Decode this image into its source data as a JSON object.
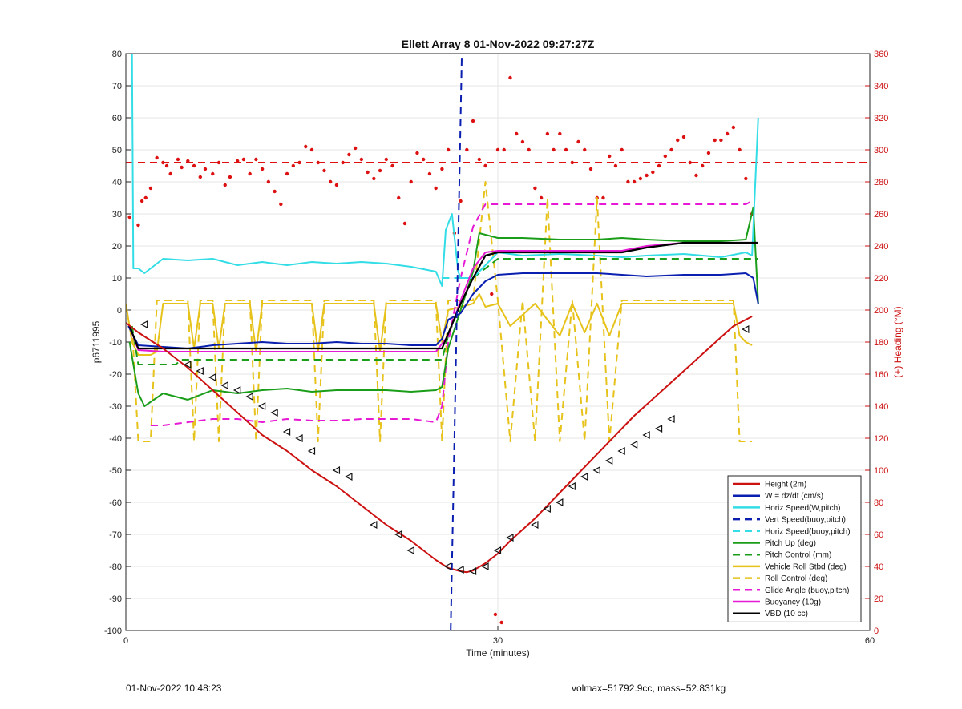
{
  "chart_data": {
    "type": "line",
    "title": "Ellett Array 8 01-Nov-2022 09:27:27Z",
    "xlabel": "Time (minutes)",
    "ylabel": "p6711995",
    "y2label": "(+) Heading (°M)",
    "xlim": [
      0,
      60
    ],
    "ylim": [
      -100,
      80
    ],
    "y2lim": [
      0,
      360
    ],
    "xticks": [
      0,
      30,
      60
    ],
    "yticks": [
      -100,
      -90,
      -80,
      -70,
      -60,
      -50,
      -40,
      -30,
      -20,
      -10,
      0,
      10,
      20,
      30,
      40,
      50,
      60,
      70,
      80
    ],
    "y2ticks": [
      0,
      20,
      40,
      60,
      80,
      100,
      120,
      140,
      160,
      180,
      200,
      220,
      240,
      260,
      280,
      300,
      320,
      340,
      360
    ],
    "grid": true,
    "legend_position": "bottom-right",
    "colors": {
      "height": "#cc1111",
      "w": "#0a1fb0",
      "horiz": "#33dde6",
      "pitch": "#1a9e1a",
      "roll": "#e6c21a",
      "glide": "#e61ad4",
      "vbd": "#000000",
      "heading": "#dd1111",
      "right_axis": "#cc1111"
    },
    "series": [
      {
        "key": "height",
        "name": "Height (2m)",
        "axis": "left",
        "style": "solid",
        "x": [
          0,
          1,
          3,
          5,
          7,
          9,
          11,
          13,
          15,
          17,
          19,
          21,
          23,
          25,
          26,
          27,
          27.5,
          28,
          29,
          30,
          31,
          33,
          35,
          37,
          39,
          41,
          43,
          45,
          47,
          49,
          50.5
        ],
        "y": [
          -4,
          -7,
          -12,
          -18,
          -25,
          -32,
          -39,
          -44,
          -50,
          -55,
          -61,
          -67,
          -72,
          -78,
          -80.5,
          -81.5,
          -81.8,
          -81.3,
          -79,
          -76,
          -72,
          -65,
          -57,
          -49,
          -41,
          -33,
          -26,
          -19,
          -12,
          -5,
          -2
        ]
      },
      {
        "key": "w",
        "name": "W = dz/dt (cm/s)",
        "axis": "left",
        "style": "solid",
        "x": [
          0.2,
          1,
          3,
          5,
          7,
          9,
          11,
          13,
          15,
          17,
          19,
          21,
          23,
          25,
          25.5,
          26,
          27,
          27.5,
          28,
          29,
          30,
          32,
          35,
          38,
          40,
          42,
          45,
          48,
          50,
          50.6,
          51
        ],
        "y": [
          -5,
          -11,
          -11.5,
          -12,
          -11,
          -10.5,
          -10,
          -10.5,
          -10.5,
          -10,
          -10.5,
          -10.5,
          -11,
          -11,
          -9,
          -3,
          -1,
          2,
          5,
          9,
          11,
          11.5,
          11.5,
          11.5,
          11,
          10.5,
          11,
          11,
          11.5,
          10,
          2
        ]
      },
      {
        "key": "horiz",
        "name": "Horiz Speed(W,pitch)",
        "axis": "left",
        "style": "solid",
        "x": [
          0.5,
          0.6,
          1,
          1.5,
          3,
          5,
          7,
          9,
          11,
          13,
          15,
          17,
          19,
          21,
          23,
          25,
          25.5,
          25.8,
          26.3,
          26.8,
          27,
          28,
          29,
          30,
          32,
          35,
          38,
          40,
          42,
          45,
          48,
          50,
          50.5,
          51
        ],
        "y": [
          80,
          13,
          13,
          11.5,
          16,
          15.5,
          16,
          14,
          15,
          14,
          15,
          14.5,
          15,
          14.5,
          13.5,
          12,
          7.5,
          25,
          30,
          12,
          10,
          10,
          14,
          18,
          17,
          17.5,
          17,
          16.5,
          17,
          17.5,
          16.5,
          18,
          17,
          60
        ]
      },
      {
        "key": "vert_buoy",
        "name": "Vert Speed(buoy,pitch)",
        "axis": "left",
        "style": "dashed",
        "x": [
          26.2,
          27.1
        ],
        "y": [
          -100,
          80
        ]
      },
      {
        "key": "horiz_buoy",
        "name": "Horiz Speed(buoy,pitch)",
        "axis": "left",
        "style": "dashed",
        "x": [
          25.5,
          27.3
        ],
        "y": [
          10,
          10
        ]
      },
      {
        "key": "pitch",
        "name": "Pitch Up (deg)",
        "axis": "left",
        "style": "solid",
        "x": [
          0.3,
          1,
          1.5,
          3,
          5,
          7,
          9,
          11,
          13,
          15,
          17,
          19,
          21,
          23,
          25,
          25.5,
          26,
          27,
          28,
          28.5,
          30,
          32,
          35,
          38,
          40,
          42,
          45,
          48,
          50,
          50.6,
          51
        ],
        "y": [
          -10,
          -26,
          -30,
          -26,
          -28,
          -25,
          -26,
          -25,
          -24.5,
          -25.5,
          -25,
          -25,
          -25,
          -25.5,
          -25,
          -24,
          -12,
          0,
          12,
          24,
          22.5,
          22.5,
          22,
          22,
          22.5,
          22,
          21.5,
          21.5,
          22,
          32,
          2
        ]
      },
      {
        "key": "pitch_ctrl",
        "name": "Pitch Control (mm)",
        "axis": "left",
        "style": "dashed",
        "x": [
          0.5,
          1,
          4,
          4.5,
          25,
          25.5,
          26,
          27,
          28,
          30,
          40,
          50,
          51
        ],
        "y": [
          -5,
          -17,
          -17,
          -15.5,
          -15.5,
          -15.5,
          -8,
          2,
          10,
          16,
          16,
          16,
          16
        ]
      },
      {
        "key": "roll",
        "name": "Vehicle Roll Stbd (deg)",
        "axis": "left",
        "style": "solid",
        "x": [
          0,
          0.5,
          1,
          2,
          2.5,
          3,
          5,
          5.5,
          6,
          7,
          7.5,
          8,
          10,
          10.5,
          11,
          15,
          15.5,
          16,
          20,
          20.5,
          21,
          25,
          25.5,
          26,
          28,
          28.5,
          29,
          30,
          31,
          33,
          35,
          36,
          37,
          38,
          39,
          40,
          45,
          49,
          49.5,
          50,
          50.5
        ],
        "y": [
          2,
          -10,
          -14,
          -14,
          -13,
          2,
          2,
          -12,
          2,
          2,
          -12,
          2,
          2,
          -13,
          2,
          2,
          -13,
          2,
          2,
          -13,
          2,
          2,
          -10,
          0,
          2,
          5,
          1,
          2,
          -5,
          2,
          -8,
          2,
          -7,
          2,
          -8,
          2,
          2,
          2,
          -8,
          -10,
          -11
        ]
      },
      {
        "key": "roll_ctrl",
        "name": "Roll Control (deg)",
        "axis": "left",
        "style": "dashed",
        "x": [
          0.5,
          1,
          2,
          2.5,
          3,
          5,
          5.5,
          6,
          7,
          7.5,
          8,
          10,
          10.5,
          11,
          15,
          15.5,
          16,
          20,
          20.5,
          21,
          25,
          25.5,
          26,
          28,
          29,
          30,
          31,
          32,
          33,
          34,
          35,
          36,
          37,
          38,
          39,
          40,
          45,
          49,
          49.5,
          50.5
        ],
        "y": [
          -5,
          -41,
          -41,
          3,
          3,
          3,
          -41,
          3,
          3,
          -41,
          3,
          3,
          -41,
          3,
          3,
          -41,
          3,
          3,
          -41,
          3,
          3,
          -41,
          3,
          3,
          40,
          3,
          -41,
          3,
          -41,
          35,
          -41,
          3,
          -41,
          35,
          -41,
          3,
          3,
          3,
          -41,
          -41
        ]
      },
      {
        "key": "glide",
        "name": "Glide Angle (buoy,pitch)",
        "axis": "left",
        "style": "dashed",
        "x": [
          2,
          3,
          5,
          7,
          9,
          11,
          13,
          15,
          17,
          19,
          21,
          23,
          25,
          25.5,
          26,
          27,
          28,
          29,
          30,
          32,
          35,
          38,
          40,
          42,
          45,
          48,
          50,
          50.5
        ],
        "y": [
          -36,
          -36,
          -35,
          -34,
          -34,
          -35,
          -34,
          -34.5,
          -34.5,
          -34,
          -34,
          -34,
          -35,
          -30,
          -10,
          10,
          26,
          33,
          33,
          33,
          33,
          33,
          33,
          33,
          33,
          33,
          33,
          34
        ]
      },
      {
        "key": "buoy",
        "name": "Buoyancy (10g)",
        "axis": "left",
        "style": "solid",
        "x": [
          0.3,
          1,
          3,
          5,
          10,
          15,
          20,
          25,
          26,
          27,
          28,
          29,
          30,
          35,
          40,
          42,
          45,
          50,
          51
        ],
        "y": [
          -5,
          -12.5,
          -13,
          -13,
          -13,
          -13,
          -13,
          -13,
          -8,
          3,
          13,
          18,
          18.5,
          18.5,
          18.5,
          20,
          21,
          21,
          21
        ]
      },
      {
        "key": "vbd",
        "name": "VBD (10 cc)",
        "axis": "left",
        "style": "solid",
        "x": [
          0.3,
          1,
          5,
          10,
          15,
          20,
          25,
          25.5,
          27,
          28,
          29,
          30,
          35,
          40,
          42,
          45,
          50,
          51
        ],
        "y": [
          -5,
          -12,
          -12,
          -12,
          -12,
          -12,
          -12,
          -12,
          2,
          10,
          17,
          18,
          18,
          18,
          19.5,
          21,
          21,
          21
        ]
      }
    ],
    "heading": {
      "name": "Heading",
      "axis": "right",
      "style": "dots",
      "x": [
        0.3,
        1.0,
        1.3,
        1.6,
        2.0,
        2.5,
        3.0,
        3.3,
        3.6,
        4.2,
        4.5,
        5.0,
        5.5,
        6.0,
        6.4,
        7.0,
        7.5,
        8.0,
        8.4,
        9.0,
        9.5,
        10.0,
        10.5,
        11.0,
        11.5,
        12.0,
        12.5,
        13.0,
        13.5,
        14.0,
        14.5,
        15.0,
        15.5,
        16.0,
        16.5,
        17.0,
        17.5,
        18.0,
        18.5,
        19.0,
        19.5,
        20.0,
        20.5,
        21.0,
        21.5,
        22.0,
        22.5,
        23.0,
        23.5,
        24.0,
        24.5,
        25.0,
        25.5,
        26.0,
        26.5,
        27.0,
        27.5,
        28.0,
        28.5,
        29.0,
        29.5,
        30.0,
        30.5,
        31.0,
        31.5,
        32.0,
        32.5,
        33.0,
        33.5,
        34.0,
        34.5,
        35.0,
        35.5,
        36.0,
        36.5,
        37.0,
        37.5,
        38.0,
        38.5,
        39.0,
        39.5,
        40.0,
        40.5,
        41.0,
        41.5,
        42.0,
        42.5,
        43.0,
        43.5,
        44.0,
        44.5,
        45.0,
        45.5,
        46.0,
        46.5,
        47.0,
        47.5,
        48.0,
        48.5,
        49.0,
        49.5,
        50.0,
        50.5,
        29.8,
        30.3
      ],
      "y": [
        258,
        253,
        268,
        270,
        276,
        295,
        292,
        290,
        285,
        294,
        289,
        293,
        290,
        283,
        288,
        285,
        292,
        278,
        283,
        293,
        294,
        285,
        294,
        288,
        280,
        274,
        266,
        285,
        290,
        292,
        302,
        300,
        292,
        287,
        280,
        278,
        292,
        297,
        301,
        294,
        286,
        282,
        287,
        294,
        290,
        270,
        254,
        280,
        298,
        294,
        285,
        276,
        288,
        300,
        248,
        268,
        300,
        318,
        294,
        290,
        210,
        300,
        300,
        345,
        310,
        305,
        300,
        276,
        270,
        310,
        300,
        310,
        300,
        292,
        305,
        300,
        288,
        270,
        270,
        296,
        290,
        300,
        280,
        280,
        282,
        284,
        286,
        290,
        296,
        300,
        306,
        308,
        292,
        284,
        290,
        298,
        306,
        306,
        310,
        314,
        300,
        282,
        260,
        10,
        5
      ]
    },
    "heading_reference": {
      "value": 292,
      "style": "dashed"
    },
    "markers": {
      "symbol": "triangle-left",
      "x": [
        1.5,
        5,
        6,
        7,
        8,
        9,
        10,
        11,
        12,
        13,
        14,
        15,
        17,
        18,
        20,
        22,
        23,
        26,
        27,
        28,
        29,
        30,
        31,
        33,
        34,
        35,
        36,
        37,
        38,
        39,
        40,
        41,
        42,
        43,
        44,
        50
      ],
      "y": [
        -4.5,
        -17,
        -19,
        -21,
        -23.5,
        -25,
        -27,
        -30,
        -32,
        -38,
        -40,
        -44,
        -50,
        -52,
        -67,
        -70,
        -75,
        -80,
        -81,
        -81.5,
        -80,
        -75,
        -71,
        -67,
        -62,
        -60,
        -55,
        -52,
        -50,
        -47,
        -44,
        -42,
        -39,
        -37,
        -34,
        -6
      ]
    },
    "legend": [
      "Height (2m)",
      "W = dz/dt (cm/s)",
      "Horiz Speed(W,pitch)",
      "Vert Speed(buoy,pitch)",
      "Horiz Speed(buoy,pitch)",
      "Pitch Up (deg)",
      "Pitch Control (mm)",
      "Vehicle Roll Stbd (deg)",
      "Roll Control (deg)",
      "Glide Angle (buoy,pitch)",
      "Buoyancy (10g)",
      "VBD (10 cc)"
    ]
  },
  "footer": {
    "left": "01-Nov-2022 10:48:23",
    "right": "volmax=51792.9cc, mass=52.831kg"
  }
}
